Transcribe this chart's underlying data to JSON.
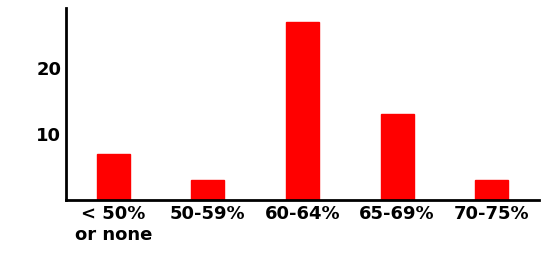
{
  "categories": [
    "< 50%\nor none",
    "50-59%",
    "60-64%",
    "65-69%",
    "70-75%"
  ],
  "values": [
    7,
    3,
    27,
    13,
    3
  ],
  "bar_color": "#ff0000",
  "yticks": [
    10,
    20
  ],
  "ylim": [
    0,
    29
  ],
  "background_color": "#ffffff",
  "bar_width": 0.35,
  "tick_fontsize": 13,
  "tick_fontweight": "bold"
}
